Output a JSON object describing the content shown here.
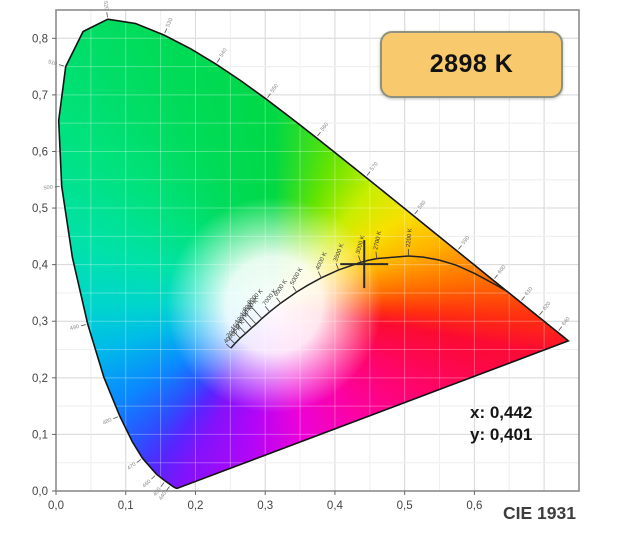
{
  "badge": {
    "label": "2898 K",
    "bg": "#f8ca6d",
    "border": "#90907e"
  },
  "readout": {
    "x": "x: 0,442",
    "y": "y: 0,401"
  },
  "caption": "CIE 1931",
  "chart_data": {
    "type": "scatter",
    "subtype": "cie-1931-chromaticity-diagram",
    "title": "CIE 1931",
    "xlabel": "",
    "ylabel": "",
    "xlim": [
      0,
      0.75
    ],
    "ylim": [
      0,
      0.85
    ],
    "grid": true,
    "grid_minor_step": 0.05,
    "grid_major_step": 0.1,
    "x_tick_values": [
      0.0,
      0.1,
      0.2,
      0.3,
      0.4,
      0.5,
      0.6
    ],
    "x_tick_labels": [
      "0,0",
      "0,1",
      "0,2",
      "0,3",
      "0,4",
      "0,5",
      "0,6"
    ],
    "y_tick_values": [
      0.0,
      0.1,
      0.2,
      0.3,
      0.4,
      0.5,
      0.6,
      0.7,
      0.8
    ],
    "y_tick_labels": [
      "0,0",
      "0,1",
      "0,2",
      "0,3",
      "0,4",
      "0,5",
      "0,6",
      "0,7",
      "0,8"
    ],
    "marker": {
      "x": 0.442,
      "y": 0.401,
      "x_display": "0,442",
      "y_display": "0,401",
      "cct": "2898 K"
    },
    "spectral_locus": [
      [
        380,
        0.1741,
        0.005
      ],
      [
        410,
        0.1726,
        0.0048
      ],
      [
        430,
        0.1689,
        0.0069
      ],
      [
        440,
        0.1644,
        0.0109
      ],
      [
        450,
        0.1566,
        0.0177
      ],
      [
        460,
        0.144,
        0.0297
      ],
      [
        470,
        0.1241,
        0.0578
      ],
      [
        475,
        0.1096,
        0.0868
      ],
      [
        480,
        0.0913,
        0.1327
      ],
      [
        485,
        0.0687,
        0.2007
      ],
      [
        490,
        0.0454,
        0.295
      ],
      [
        495,
        0.0235,
        0.4127
      ],
      [
        500,
        0.0082,
        0.5384
      ],
      [
        505,
        0.0039,
        0.6548
      ],
      [
        510,
        0.0139,
        0.7502
      ],
      [
        515,
        0.0389,
        0.812
      ],
      [
        520,
        0.0743,
        0.8338
      ],
      [
        525,
        0.1142,
        0.8262
      ],
      [
        530,
        0.1547,
        0.8059
      ],
      [
        535,
        0.1929,
        0.7816
      ],
      [
        540,
        0.2296,
        0.7543
      ],
      [
        545,
        0.2658,
        0.7243
      ],
      [
        550,
        0.3016,
        0.6923
      ],
      [
        555,
        0.3373,
        0.6589
      ],
      [
        560,
        0.3731,
        0.6245
      ],
      [
        565,
        0.4087,
        0.5896
      ],
      [
        570,
        0.4441,
        0.5547
      ],
      [
        575,
        0.4788,
        0.5202
      ],
      [
        580,
        0.5125,
        0.4866
      ],
      [
        585,
        0.5448,
        0.4544
      ],
      [
        590,
        0.5752,
        0.4242
      ],
      [
        595,
        0.6029,
        0.3965
      ],
      [
        600,
        0.627,
        0.3725
      ],
      [
        605,
        0.6482,
        0.3514
      ],
      [
        610,
        0.6658,
        0.334
      ],
      [
        615,
        0.6801,
        0.3197
      ],
      [
        620,
        0.6915,
        0.3083
      ],
      [
        630,
        0.7079,
        0.292
      ],
      [
        640,
        0.719,
        0.2809
      ],
      [
        650,
        0.726,
        0.274
      ],
      [
        700,
        0.7347,
        0.2653
      ]
    ],
    "wavelength_labels": [
      440,
      450,
      460,
      470,
      480,
      490,
      500,
      510,
      520,
      530,
      540,
      550,
      560,
      570,
      580,
      590,
      600,
      610,
      620,
      640
    ],
    "planckian_locus": [
      [
        40000,
        0.2506,
        0.2525
      ],
      [
        20000,
        0.2565,
        0.2605
      ],
      [
        15000,
        0.264,
        0.27
      ],
      [
        12000,
        0.2717,
        0.2785
      ],
      [
        10000,
        0.2807,
        0.2884
      ],
      [
        9000,
        0.2869,
        0.295
      ],
      [
        8000,
        0.2952,
        0.3048
      ],
      [
        7000,
        0.3064,
        0.3166
      ],
      [
        6000,
        0.3221,
        0.3318
      ],
      [
        5000,
        0.3451,
        0.3516
      ],
      [
        4500,
        0.3608,
        0.3635
      ],
      [
        4000,
        0.3805,
        0.3768
      ],
      [
        3500,
        0.4053,
        0.3907
      ],
      [
        3000,
        0.4369,
        0.4041
      ],
      [
        2898,
        0.4475,
        0.4075
      ],
      [
        2700,
        0.4599,
        0.4106
      ],
      [
        2200,
        0.5056,
        0.4152
      ],
      [
        2000,
        0.5267,
        0.4133
      ],
      [
        1800,
        0.55,
        0.408
      ],
      [
        1600,
        0.574,
        0.399
      ],
      [
        1400,
        0.601,
        0.384
      ],
      [
        1200,
        0.631,
        0.364
      ],
      [
        1100,
        0.648,
        0.352
      ]
    ],
    "cct_labels": [
      40000,
      20000,
      15000,
      12000,
      10000,
      9000,
      8000,
      7000,
      6000,
      5000,
      4000,
      3500,
      3000,
      2700,
      2200
    ],
    "cct_label_suffix": " K",
    "colors": {
      "grid_major": "#c9c9c9",
      "grid_minor": "#e9e9e9",
      "plot_border": "#8c8c8c",
      "spectral_outline": "#141414",
      "planckian_curve": "#222222",
      "crosshair": "#2a2a2a",
      "axis_text": "#444444",
      "wavelength_text": "#888888",
      "cct_text": "#3a3a3a"
    }
  }
}
